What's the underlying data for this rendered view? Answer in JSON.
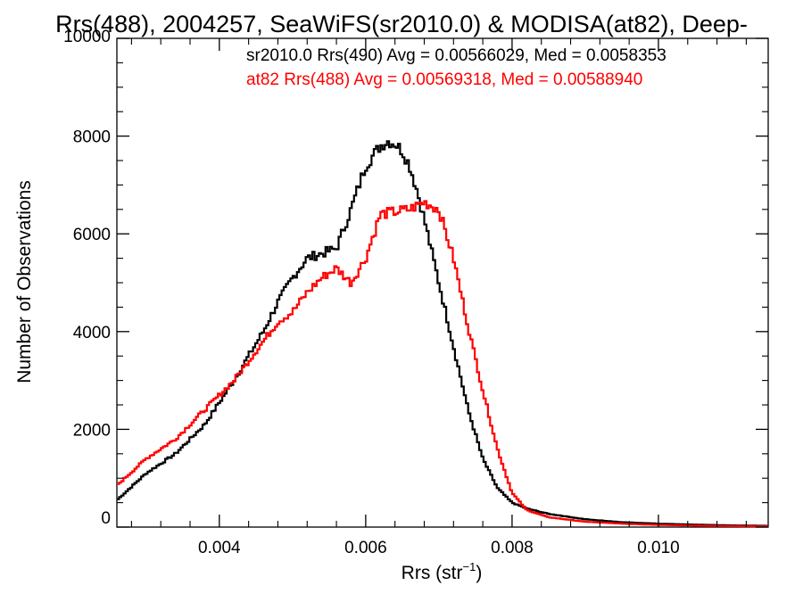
{
  "chart_data": {
    "type": "line",
    "title": "Rrs(488), 2004257, SeaWiFS(sr2010.0) & MODISA(at82), Deep-",
    "xlabel": "Rrs (str",
    "xlabel_sup": "−1",
    "xlabel_close": ")",
    "ylabel": "Number of Observations",
    "xlim": [
      0.0026,
      0.0115
    ],
    "ylim": [
      0,
      10000
    ],
    "xticks": [
      {
        "value": 0.004,
        "label": "0.004"
      },
      {
        "value": 0.006,
        "label": "0.006"
      },
      {
        "value": 0.008,
        "label": "0.008"
      },
      {
        "value": 0.01,
        "label": "0.010"
      }
    ],
    "yticks": [
      {
        "value": 0,
        "label": "0"
      },
      {
        "value": 2000,
        "label": "2000"
      },
      {
        "value": 4000,
        "label": "4000"
      },
      {
        "value": 6000,
        "label": "6000"
      },
      {
        "value": 8000,
        "label": "8000"
      },
      {
        "value": 10000,
        "label": "10000"
      }
    ],
    "grid": false,
    "series": [
      {
        "name": "sr2010.0 Rrs(490)",
        "annotation": "sr2010.0 Rrs(490) Avg = 0.00566029, Med = 0.0058353",
        "color": "#000000",
        "x": [
          0.0026,
          0.003,
          0.0034,
          0.0038,
          0.0042,
          0.0046,
          0.0048,
          0.005,
          0.0052,
          0.0054,
          0.0056,
          0.0058,
          0.006,
          0.0062,
          0.0063,
          0.0064,
          0.0065,
          0.0066,
          0.0067,
          0.0068,
          0.007,
          0.0072,
          0.0074,
          0.0076,
          0.0078,
          0.008,
          0.0082,
          0.0085,
          0.009,
          0.0095,
          0.01,
          0.0105,
          0.011,
          0.0115
        ],
        "y": [
          550,
          1100,
          1500,
          2100,
          3000,
          4000,
          4600,
          5100,
          5500,
          5600,
          5700,
          6500,
          7400,
          7800,
          7900,
          7850,
          7700,
          7400,
          6900,
          6300,
          5000,
          3700,
          2400,
          1400,
          800,
          500,
          380,
          270,
          160,
          100,
          70,
          50,
          35,
          25
        ]
      },
      {
        "name": "at82 Rrs(488)",
        "annotation": "at82 Rrs(488) Avg = 0.00569318, Med = 0.00588940",
        "color": "#ff0000",
        "x": [
          0.0026,
          0.003,
          0.0034,
          0.0038,
          0.0042,
          0.0046,
          0.0048,
          0.005,
          0.0052,
          0.0054,
          0.0056,
          0.0058,
          0.006,
          0.0062,
          0.0064,
          0.0066,
          0.0068,
          0.007,
          0.0071,
          0.0072,
          0.0074,
          0.0076,
          0.0078,
          0.008,
          0.0082,
          0.0085,
          0.009,
          0.0095,
          0.01,
          0.0105,
          0.011,
          0.0115
        ],
        "y": [
          850,
          1400,
          1800,
          2400,
          3000,
          3800,
          4200,
          4400,
          4800,
          5100,
          5300,
          5000,
          5500,
          6400,
          6450,
          6500,
          6650,
          6500,
          6000,
          5500,
          4100,
          2800,
          1600,
          700,
          350,
          200,
          110,
          70,
          45,
          30,
          20,
          15
        ]
      }
    ]
  }
}
